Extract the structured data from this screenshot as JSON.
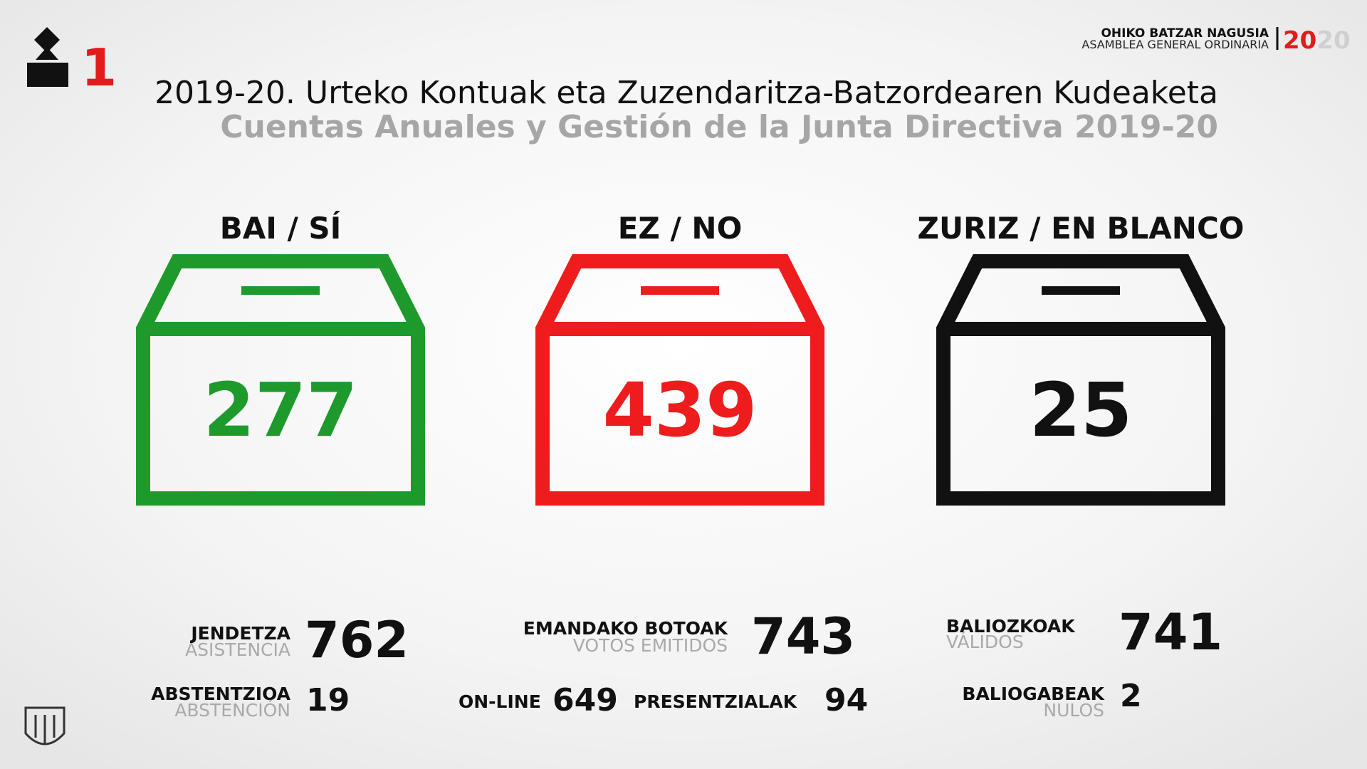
{
  "header": {
    "item_number": "1",
    "event_eu": "OHIKO BATZAR NAGUSIA",
    "event_es": "ASAMBLEA GENERAL ORDINARIA",
    "year_a": "20",
    "year_b": "20"
  },
  "title": "2019-20. Urteko Kontuak eta Zuzendaritza-Batzordearen Kudeaketa",
  "subtitle": "Cuentas Anuales y Gestión de la Junta Directiva 2019-20",
  "options": [
    {
      "label": "BAI / SÍ",
      "value": "277",
      "color": "#1e9a2d"
    },
    {
      "label": "EZ / NO",
      "value": "439",
      "color": "#ee1c1c"
    },
    {
      "label": "ZURIZ / EN BLANCO",
      "value": "25",
      "color": "#111111"
    }
  ],
  "stats": {
    "attendance_eu": "JENDETZA",
    "attendance_es": "ASISTENCIA",
    "attendance": "762",
    "abstention_eu": "ABSTENTZIOA",
    "abstention_es": "ABSTENCIÓN",
    "abstention": "19",
    "cast_eu": "EMANDAKO BOTOAK",
    "cast_es": "VOTOS EMITIDOS",
    "cast": "743",
    "online_label": "ON-LINE",
    "online": "649",
    "in_person_label": "PRESENTZIALAK",
    "in_person": "94",
    "valid_eu": "BALIOZKOAK",
    "valid_es": "VÁLIDOS",
    "valid": "741",
    "null_eu": "BALIOGABEAK",
    "null_es": "NULOS",
    "null": "2"
  }
}
